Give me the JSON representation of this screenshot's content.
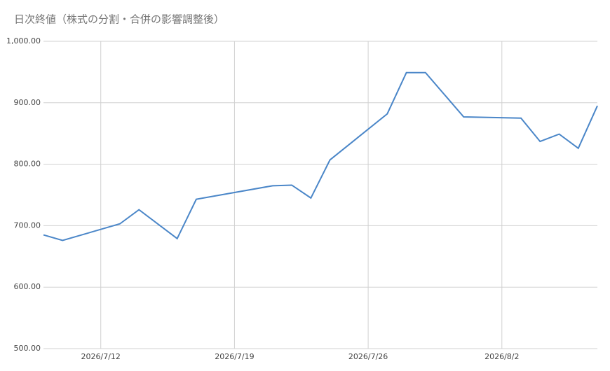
{
  "chart_data": {
    "type": "line",
    "title": "日次終値（株式の分割・合併の影響調整後）",
    "x": [
      "2026/7/9",
      "2026/7/10",
      "2026/7/13",
      "2026/7/14",
      "2026/7/16",
      "2026/7/17",
      "2026/7/21",
      "2026/7/22",
      "2026/7/23",
      "2026/7/24",
      "2026/7/27",
      "2026/7/28",
      "2026/7/29",
      "2026/7/31",
      "2026/8/3",
      "2026/8/4",
      "2026/8/5",
      "2026/8/6",
      "2026/8/7"
    ],
    "series": [
      {
        "color": "#4a86c8",
        "values": [
          685,
          676,
          703,
          726,
          679,
          743,
          765,
          766,
          745,
          807,
          882,
          949,
          949,
          877,
          875,
          837,
          849,
          826,
          895
        ]
      }
    ],
    "xlim": [
      "2026/7/9",
      "2026/8/7"
    ],
    "xticks": [
      "2026/7/12",
      "2026/7/19",
      "2026/7/26",
      "2026/8/2"
    ],
    "ylim": [
      500,
      1000
    ],
    "yticks": [
      {
        "value": 500,
        "label": "500.00"
      },
      {
        "value": 600,
        "label": "600.00"
      },
      {
        "value": 700,
        "label": "700.00"
      },
      {
        "value": 800,
        "label": "800.00"
      },
      {
        "value": 900,
        "label": "900.00"
      },
      {
        "value": 1000,
        "label": "1,000.00"
      }
    ],
    "grid": true
  }
}
